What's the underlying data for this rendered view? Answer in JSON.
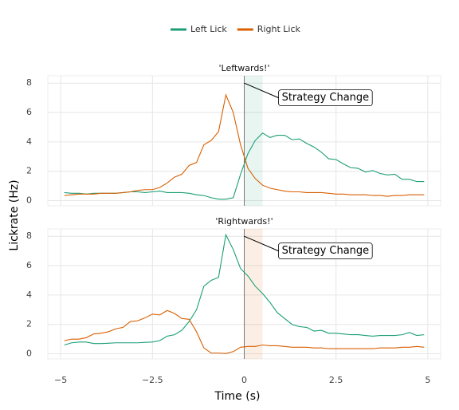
{
  "chart_data": {
    "type": "line",
    "xlabel": "Time (s)",
    "ylabel": "Lickrate (Hz)",
    "x": [
      -4.9,
      -4.7,
      -4.5,
      -4.3,
      -4.1,
      -3.9,
      -3.7,
      -3.5,
      -3.3,
      -3.1,
      -2.9,
      -2.7,
      -2.5,
      -2.3,
      -2.1,
      -1.9,
      -1.7,
      -1.5,
      -1.3,
      -1.1,
      -0.9,
      -0.7,
      -0.5,
      -0.3,
      -0.1,
      0.1,
      0.3,
      0.5,
      0.7,
      0.9,
      1.1,
      1.3,
      1.5,
      1.7,
      1.9,
      2.1,
      2.3,
      2.5,
      2.7,
      2.9,
      3.1,
      3.3,
      3.5,
      3.7,
      3.9,
      4.1,
      4.3,
      4.5,
      4.7,
      4.9
    ],
    "xlim": [
      -5.35,
      5.35
    ],
    "xticks": [
      {
        "value": -5,
        "label": "−5"
      },
      {
        "value": -2.5,
        "label": "−2.5"
      },
      0,
      2.5,
      5
    ],
    "ylim": [
      -0.35,
      8.5
    ],
    "yticks": [
      0,
      2,
      4,
      6,
      8
    ],
    "grid": true,
    "legend": "top",
    "series": [
      {
        "name": "Left Lick",
        "color": "#1b9e77"
      },
      {
        "name": "Right Lick",
        "color": "#d95f02"
      }
    ],
    "panels": [
      {
        "title": "'Leftwards!'",
        "shade": [
          0,
          0.5
        ],
        "shade_color": "#1b9e77",
        "annotation": {
          "text": "Strategy Change",
          "xy": [
            0,
            8
          ],
          "xytext": [
            1.0,
            7.0
          ]
        },
        "series_values": [
          [
            0.55,
            0.5,
            0.5,
            0.45,
            0.5,
            0.5,
            0.5,
            0.5,
            0.55,
            0.6,
            0.6,
            0.55,
            0.6,
            0.65,
            0.55,
            0.55,
            0.55,
            0.5,
            0.4,
            0.35,
            0.2,
            0.1,
            0.1,
            0.2,
            1.8,
            3.2,
            4.1,
            4.6,
            4.3,
            4.45,
            4.45,
            4.15,
            4.2,
            3.9,
            3.65,
            3.3,
            2.85,
            2.8,
            2.5,
            2.25,
            2.2,
            1.95,
            2.05,
            1.85,
            1.75,
            1.8,
            1.45,
            1.45,
            1.3,
            1.3
          ],
          [
            0.35,
            0.4,
            0.45,
            0.45,
            0.45,
            0.5,
            0.5,
            0.5,
            0.55,
            0.6,
            0.7,
            0.75,
            0.75,
            0.9,
            1.2,
            1.6,
            1.8,
            2.4,
            2.6,
            3.8,
            4.1,
            4.7,
            7.2,
            6.0,
            3.8,
            2.2,
            1.5,
            1.05,
            0.85,
            0.75,
            0.65,
            0.6,
            0.6,
            0.55,
            0.55,
            0.55,
            0.5,
            0.45,
            0.45,
            0.4,
            0.4,
            0.4,
            0.35,
            0.35,
            0.3,
            0.35,
            0.35,
            0.4,
            0.4,
            0.4
          ]
        ]
      },
      {
        "title": "'Rightwards!'",
        "shade": [
          0,
          0.5
        ],
        "shade_color": "#d95f02",
        "annotation": {
          "text": "Strategy Change",
          "xy": [
            0,
            8
          ],
          "xytext": [
            1.0,
            7.0
          ]
        },
        "series_values": [
          [
            0.6,
            0.75,
            0.8,
            0.8,
            0.7,
            0.7,
            0.72,
            0.75,
            0.75,
            0.75,
            0.75,
            0.78,
            0.8,
            0.9,
            1.2,
            1.3,
            1.6,
            2.2,
            3.0,
            4.6,
            5.0,
            5.2,
            8.1,
            7.1,
            5.8,
            5.3,
            4.6,
            4.1,
            3.5,
            2.8,
            2.4,
            2.0,
            1.85,
            1.8,
            1.55,
            1.6,
            1.4,
            1.4,
            1.35,
            1.3,
            1.3,
            1.25,
            1.2,
            1.25,
            1.25,
            1.25,
            1.3,
            1.45,
            1.25,
            1.3
          ],
          [
            0.9,
            1.0,
            1.0,
            1.1,
            1.35,
            1.4,
            1.5,
            1.7,
            1.8,
            2.2,
            2.25,
            2.45,
            2.7,
            2.65,
            2.95,
            2.75,
            2.4,
            2.35,
            1.5,
            0.4,
            0.05,
            0.05,
            0.02,
            0.15,
            0.45,
            0.5,
            0.5,
            0.6,
            0.55,
            0.55,
            0.5,
            0.45,
            0.45,
            0.45,
            0.4,
            0.4,
            0.35,
            0.35,
            0.35,
            0.35,
            0.35,
            0.35,
            0.35,
            0.4,
            0.4,
            0.4,
            0.45,
            0.45,
            0.5,
            0.45
          ]
        ]
      }
    ]
  }
}
